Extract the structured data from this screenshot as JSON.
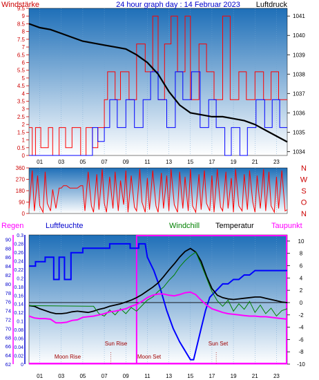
{
  "colors": {
    "wind_gust": "#ff0000",
    "wind_avg": "#0000ff",
    "pressure": "#000000",
    "direction": "#ff0000",
    "humidity": "#0000ff",
    "windchill": "#008000",
    "temperature": "#000000",
    "dewpoint": "#ff00ff",
    "rain": "#ff00ff",
    "night": "#ff00ff",
    "day": "#ff00ff",
    "sky_top": "#1e6fb8",
    "sky_bottom": "#ffffff",
    "axis_left": "#cc0000",
    "axis_blue": "#0000cc",
    "axis_right": "#000000"
  },
  "chart_data": [
    {
      "type": "line",
      "title": "24 hour graph day : 14 Februar 2023",
      "ylabel_left": "Windstärke",
      "ylabel_right": "Luftdruck",
      "xticks": [
        "01",
        "03",
        "05",
        "07",
        "09",
        "11",
        "13",
        "15",
        "17",
        "19",
        "21",
        "23"
      ],
      "xlim": [
        0,
        24
      ],
      "ylim_left": [
        0,
        9.5
      ],
      "yticks_left": [
        "0",
        "0.5",
        "1",
        "1.5",
        "2",
        "2.5",
        "3",
        "3.5",
        "4",
        "4.5",
        "5",
        "5.5",
        "6",
        "6.5",
        "7",
        "7.5",
        "8",
        "8.5",
        "9",
        "9.5"
      ],
      "ylim_right": [
        1033.8,
        1041.4
      ],
      "yticks_right": [
        "1034",
        "1035",
        "1036",
        "1037",
        "1038",
        "1039",
        "1040",
        "1041"
      ],
      "series": [
        {
          "role": "wind_gust",
          "axis": "left",
          "x": [
            0.0,
            0.3,
            0.3,
            0.6,
            0.6,
            1.1,
            1.1,
            1.8,
            1.8,
            2.2,
            2.2,
            2.8,
            2.8,
            3.4,
            3.4,
            4.0,
            4.0,
            4.8,
            4.8,
            5.3,
            5.3,
            5.9,
            5.9,
            6.4,
            6.4,
            7.0,
            7.0,
            7.3,
            7.3,
            8.0,
            8.0,
            8.5,
            8.5,
            9.3,
            9.3,
            10.0,
            10.0,
            10.8,
            10.8,
            11.5,
            11.5,
            12.0,
            12.0,
            12.6,
            12.6,
            13.2,
            13.2,
            13.8,
            13.8,
            14.5,
            14.5,
            15.0,
            15.0,
            15.8,
            15.8,
            16.5,
            16.5,
            17.2,
            17.2,
            18.0,
            18.0,
            18.7,
            18.7,
            19.5,
            19.5,
            20.2,
            20.2,
            21.0,
            21.0,
            21.8,
            21.8,
            22.5,
            22.5,
            23.2,
            23.2,
            24.0
          ],
          "y": [
            1.8,
            1.8,
            0,
            0,
            1.8,
            1.8,
            0.5,
            0.5,
            1.8,
            1.8,
            0,
            0,
            1.8,
            1.8,
            0.5,
            0.5,
            1.8,
            1.8,
            0,
            0,
            1.8,
            1.8,
            0.5,
            0.5,
            1.8,
            1.8,
            3.6,
            3.6,
            5.4,
            5.4,
            3.6,
            3.6,
            5.4,
            5.4,
            3.6,
            3.6,
            7.2,
            7.2,
            5.4,
            5.4,
            9.0,
            9.0,
            3.6,
            3.6,
            7.2,
            7.2,
            9.0,
            9.0,
            5.4,
            5.4,
            9.0,
            9.0,
            3.6,
            3.6,
            7.2,
            7.2,
            5.4,
            5.4,
            3.6,
            3.6,
            9.0,
            9.0,
            3.6,
            3.6,
            5.4,
            5.4,
            3.6,
            3.6,
            5.4,
            5.4,
            3.6,
            3.6,
            5.4,
            5.4,
            3.6,
            3.6
          ]
        },
        {
          "role": "wind_avg",
          "axis": "left",
          "x": [
            0.0,
            5.9,
            5.9,
            6.4,
            6.4,
            7.0,
            7.0,
            7.5,
            7.5,
            8.2,
            8.2,
            9.0,
            9.0,
            9.8,
            9.8,
            10.6,
            10.6,
            11.3,
            11.3,
            12.0,
            12.0,
            12.8,
            12.8,
            13.6,
            13.6,
            14.3,
            14.3,
            15.1,
            15.1,
            15.9,
            15.9,
            16.7,
            16.7,
            17.4,
            17.4,
            18.2,
            18.2,
            18.8,
            18.8,
            19.6,
            19.6,
            20.3,
            20.3,
            21.1,
            21.1,
            21.9,
            21.9,
            22.6,
            22.6,
            23.3,
            23.3,
            24.0
          ],
          "y": [
            0,
            0,
            1.8,
            1.8,
            0.9,
            0.9,
            1.8,
            1.8,
            3.6,
            3.6,
            1.8,
            1.8,
            3.6,
            3.6,
            1.8,
            1.8,
            3.6,
            3.6,
            5.4,
            5.4,
            3.6,
            3.6,
            1.8,
            1.8,
            5.4,
            5.4,
            3.6,
            3.6,
            5.4,
            5.4,
            1.8,
            1.8,
            3.6,
            3.6,
            1.8,
            1.8,
            0,
            0,
            1.8,
            1.8,
            0,
            0,
            1.8,
            1.8,
            3.6,
            3.6,
            1.8,
            1.8,
            3.6,
            3.6,
            1.8,
            1.8
          ]
        },
        {
          "role": "pressure",
          "axis": "right",
          "x": [
            0,
            1,
            2,
            3,
            4,
            5,
            6,
            7,
            8,
            9,
            10,
            11,
            12,
            13,
            14,
            15,
            16,
            17,
            18,
            19,
            20,
            21,
            22,
            23,
            24
          ],
          "y": [
            1040.6,
            1040.4,
            1040.3,
            1040.1,
            1039.9,
            1039.7,
            1039.6,
            1039.5,
            1039.4,
            1039.3,
            1039.0,
            1038.6,
            1038.0,
            1037.1,
            1036.4,
            1036.0,
            1035.9,
            1035.8,
            1035.8,
            1035.7,
            1035.6,
            1035.4,
            1035.1,
            1034.8,
            1034.5
          ]
        }
      ]
    },
    {
      "type": "line",
      "title": "",
      "xticks": [
        "01",
        "03",
        "05",
        "07",
        "09",
        "11",
        "13",
        "15",
        "17",
        "19",
        "21",
        "23"
      ],
      "xlim": [
        0,
        24
      ],
      "ylim": [
        0,
        360
      ],
      "yticks_left": [
        "0",
        "90",
        "180",
        "270",
        "360"
      ],
      "yticks_right": [
        "N",
        "W",
        "S",
        "O",
        "N"
      ],
      "series": [
        {
          "role": "direction",
          "x": [
            0.0,
            0.3,
            0.5,
            0.8,
            1.0,
            1.3,
            1.5,
            1.7,
            2.0,
            2.2,
            2.5,
            2.8,
            3.0,
            3.2,
            3.5,
            3.8,
            4.0,
            4.3,
            4.5,
            4.8,
            5.0,
            5.2,
            5.5,
            5.8,
            6.0,
            6.3,
            6.5,
            6.8,
            7.0,
            7.2,
            7.5,
            7.8,
            8.0,
            8.3,
            8.5,
            8.8,
            9.0,
            9.2,
            9.5,
            9.8,
            10.0,
            10.3,
            10.5,
            10.8,
            11.0,
            11.2,
            11.5,
            11.8,
            12.0,
            12.3,
            12.5,
            12.8,
            13.0,
            13.2,
            13.5,
            13.8,
            14.0,
            14.3,
            14.5,
            14.8,
            15.0,
            15.2,
            15.5,
            15.8,
            16.0,
            16.3,
            16.5,
            16.8,
            17.0,
            17.2,
            17.5,
            17.8,
            18.0,
            18.3,
            18.5,
            18.8,
            19.0,
            19.2,
            19.5,
            19.8,
            20.0,
            20.3,
            20.5,
            20.8,
            21.0,
            21.2,
            21.5,
            21.8,
            22.0,
            22.3,
            22.5,
            22.8,
            23.0,
            23.2,
            23.5,
            23.8,
            24.0
          ],
          "y": [
            40,
            340,
            20,
            300,
            60,
            10,
            330,
            80,
            20,
            190,
            40,
            200,
            200,
            220,
            220,
            200,
            200,
            200,
            200,
            220,
            220,
            20,
            330,
            60,
            10,
            310,
            30,
            350,
            80,
            10,
            290,
            40,
            330,
            20,
            260,
            70,
            340,
            10,
            300,
            50,
            20,
            350,
            90,
            10,
            280,
            30,
            340,
            60,
            10,
            320,
            40,
            300,
            20,
            350,
            70,
            10,
            330,
            40,
            290,
            20,
            350,
            60,
            10,
            310,
            30,
            340,
            80,
            20,
            300,
            10,
            350,
            50,
            20,
            330,
            40,
            280,
            10,
            350,
            60,
            20,
            310,
            30,
            340,
            90,
            10,
            300,
            40,
            350,
            20,
            330,
            60,
            10,
            290,
            40,
            340,
            20,
            30
          ]
        }
      ]
    },
    {
      "type": "line",
      "title": "",
      "xticks": [
        "01",
        "03",
        "05",
        "07",
        "09",
        "11",
        "13",
        "15",
        "17",
        "19",
        "21",
        "23"
      ],
      "xlim": [
        0,
        24
      ],
      "ylabels": [
        "Regen",
        "Luftfeuchte",
        "Windchill",
        "Temperatur",
        "Taupunkt"
      ],
      "ylim_humidity": [
        62,
        91
      ],
      "yticks_humidity": [
        "62",
        "64",
        "66",
        "68",
        "70",
        "72",
        "74",
        "76",
        "78",
        "80",
        "82",
        "84",
        "86",
        "88",
        "90"
      ],
      "ylim_rain": [
        0,
        0.3
      ],
      "yticks_rain": [
        "0",
        "0.02",
        "0.04",
        "0.06",
        "0.08",
        "0.1",
        "0.12",
        "0.14",
        "0.16",
        "0.18",
        "0.2",
        "0.22",
        "0.24",
        "0.26",
        "0.28",
        "0.3"
      ],
      "ylim_temp": [
        -10,
        11
      ],
      "yticks_temp": [
        "-10",
        "-8",
        "-6",
        "-4",
        "-2",
        "0",
        "2",
        "4",
        "6",
        "8",
        "10"
      ],
      "annotations": [
        "Moon Rise",
        "Sun Rise",
        "Moon Set",
        "Sun Set"
      ],
      "series": [
        {
          "role": "humidity",
          "axis": "humidity",
          "x": [
            0,
            0.6,
            0.6,
            1.5,
            1.5,
            2.3,
            2.3,
            2.8,
            2.8,
            3.3,
            3.3,
            3.9,
            3.9,
            5.0,
            5.0,
            7.5,
            7.5,
            9.4,
            9.4,
            10.2,
            10.2,
            10.8,
            11.0,
            11.6,
            12.2,
            12.8,
            13.4,
            14.0,
            14.5,
            15.0,
            15.3,
            15.6,
            16.0,
            16.4,
            16.8,
            17.2,
            17.6,
            18.0,
            18.5,
            19.0,
            19.5,
            20.0,
            20.5,
            21.0,
            21.5,
            22.0,
            22.5,
            23.0,
            23.5,
            24.0
          ],
          "y": [
            84,
            84,
            85,
            85,
            86,
            86,
            81,
            81,
            86,
            86,
            81,
            81,
            87,
            87,
            88,
            88,
            89,
            89,
            88,
            88,
            89,
            89,
            86,
            83,
            79,
            74,
            70,
            67,
            65,
            63,
            63,
            66,
            70,
            74,
            77,
            78,
            79,
            80,
            80,
            81,
            81,
            82,
            82,
            83,
            83,
            83,
            83,
            83,
            83,
            83
          ]
        },
        {
          "role": "temperature",
          "axis": "temp",
          "x": [
            0,
            0.5,
            1,
            1.5,
            2,
            2.5,
            3,
            3.5,
            4,
            4.5,
            5,
            5.5,
            6,
            6.5,
            7,
            7.5,
            8,
            8.5,
            9,
            9.5,
            10,
            10.5,
            11,
            11.5,
            12,
            12.5,
            13,
            13.5,
            14,
            14.5,
            15,
            15.5,
            16,
            16.5,
            17,
            17.5,
            18,
            18.5,
            19,
            19.5,
            20,
            20.5,
            21,
            21.5,
            22,
            22.5,
            23,
            23.5,
            24
          ],
          "y": [
            -0.5,
            -0.6,
            -1.0,
            -1.3,
            -1.6,
            -1.8,
            -1.8,
            -1.7,
            -1.5,
            -1.4,
            -1.5,
            -1.6,
            -1.4,
            -1.1,
            -0.9,
            -0.6,
            -0.4,
            -0.2,
            0.1,
            0.4,
            0.8,
            1.3,
            1.9,
            2.5,
            3.2,
            4.2,
            5.3,
            6.3,
            7.4,
            8.3,
            8.8,
            8.2,
            6.7,
            4.3,
            2.3,
            1.2,
            0.8,
            0.6,
            0.5,
            0.6,
            0.7,
            0.8,
            0.9,
            0.9,
            0.7,
            0.5,
            0.3,
            0.1,
            0.0
          ]
        },
        {
          "role": "windchill",
          "axis": "temp",
          "x": [
            0,
            6,
            6.5,
            7,
            7.5,
            8,
            8.5,
            9,
            9.5,
            10,
            10.5,
            11,
            11.5,
            12,
            12.5,
            13,
            13.5,
            14,
            14.5,
            15,
            15.5,
            16,
            16.5,
            17,
            17.5,
            18,
            18.5,
            19,
            19.5,
            20,
            20.5,
            21,
            21.5,
            22,
            22.5,
            23,
            23.5,
            24
          ],
          "y": [
            -0.5,
            -0.6,
            -1.8,
            -2.2,
            -1.2,
            -2.0,
            -1.0,
            -1.8,
            -0.8,
            -1.4,
            -0.5,
            0.4,
            0.9,
            1.8,
            2.5,
            3.6,
            4.5,
            5.8,
            6.8,
            7.6,
            8.2,
            6.2,
            4.0,
            1.8,
            0.3,
            -0.6,
            0.4,
            -1.4,
            -0.2,
            -1.1,
            0.2,
            -1.6,
            -0.4,
            -1.8,
            -0.9,
            -2.2,
            -1.3,
            -1.0
          ]
        },
        {
          "role": "dewpoint",
          "axis": "temp",
          "x": [
            0,
            0.5,
            1,
            1.5,
            2,
            2.5,
            3,
            3.5,
            4,
            4.5,
            5,
            5.5,
            6,
            6.5,
            7,
            7.5,
            8,
            8.5,
            9,
            9.5,
            10,
            10.5,
            11,
            11.5,
            12,
            12.5,
            13,
            13.5,
            14,
            14.5,
            15,
            15.5,
            16,
            16.5,
            17,
            17.5,
            18,
            18.5,
            19,
            19.5,
            20,
            20.5,
            21,
            21.5,
            22,
            22.5,
            23,
            23.5,
            24
          ],
          "y": [
            -2.2,
            -2.5,
            -2.6,
            -2.6,
            -2.7,
            -3.3,
            -3.3,
            -3.2,
            -2.9,
            -2.8,
            -2.4,
            -2.3,
            -2.2,
            -2.0,
            -1.8,
            -1.5,
            -1.4,
            -1.2,
            -1.0,
            -0.6,
            -0.3,
            0.2,
            0.8,
            1.2,
            1.4,
            1.4,
            1.2,
            1.1,
            1.3,
            1.6,
            1.7,
            1.3,
            0.4,
            -0.4,
            -1.0,
            -1.3,
            -1.6,
            -1.8,
            -1.9,
            -2.0,
            -2.1,
            -2.2,
            -2.2,
            -2.3,
            -2.3,
            -2.4,
            -2.5,
            -2.6,
            -2.7
          ]
        },
        {
          "role": "rain",
          "axis": "rain",
          "x": [
            0,
            24
          ],
          "y": [
            0,
            0
          ]
        }
      ]
    }
  ]
}
